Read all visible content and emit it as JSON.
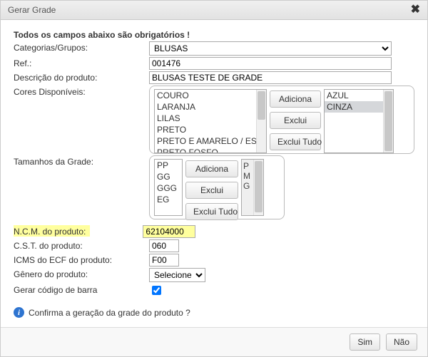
{
  "dialog": {
    "title": "Gerar Grade",
    "close_symbol": "✖"
  },
  "header": {
    "mandatory_text": "Todos os campos abaixo são obrigatórios !"
  },
  "labels": {
    "categorias": "Categorias/Grupos:",
    "ref": "Ref.:",
    "descricao": "Descrição do produto:",
    "cores": "Cores Disponíveis:",
    "tamanhos": "Tamanhos da Grade:",
    "ncm": "N.C.M. do produto:",
    "cst": "C.S.T. do produto:",
    "icms": "ICMS do ECF do produto:",
    "genero": "Gênero do produto:",
    "barcode": "Gerar código de barra"
  },
  "fields": {
    "categoria_selected": "BLUSAS",
    "ref_value": "001476",
    "descricao_value": "BLUSAS TESTE DE GRADE",
    "ncm_value": "62104000",
    "cst_value": "060",
    "icms_value": "F00",
    "genero_selected": "Selecione",
    "barcode_checked": true
  },
  "cores": {
    "disponiveis": [
      "COURO",
      "LARANJA",
      "LILAS",
      "PRETO",
      "PRETO E AMARELO / ES...",
      "PRETO FOSFO"
    ],
    "selecionadas": [
      "AZUL",
      "CINZA"
    ],
    "selected_index": 1
  },
  "tamanhos": {
    "disponiveis": [
      "PP",
      "GG",
      "GGG",
      "EG"
    ],
    "selecionados": [
      "P",
      "M",
      "G"
    ]
  },
  "buttons": {
    "adiciona": "Adiciona",
    "exclui": "Exclui",
    "exclui_tudo": "Exclui Tudo",
    "sim": "Sim",
    "nao": "Não"
  },
  "confirm": {
    "text": "Confirma a geração da grade do produto ?"
  },
  "colors": {
    "highlight": "#ffff9e",
    "sel_bg": "#d5d7da"
  }
}
